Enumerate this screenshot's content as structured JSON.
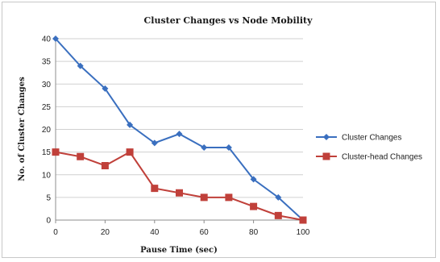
{
  "chart_data": {
    "type": "line",
    "title": "Cluster Changes vs Node Mobility",
    "xlabel": "Pause Time (sec)",
    "ylabel": "No. of Cluster Changes",
    "x": [
      0,
      10,
      20,
      30,
      40,
      50,
      60,
      70,
      80,
      90,
      100
    ],
    "xticks": [
      "0",
      "20",
      "40",
      "60",
      "80",
      "100"
    ],
    "yticks": [
      "0",
      "5",
      "10",
      "15",
      "20",
      "25",
      "30",
      "35",
      "40"
    ],
    "xlim": [
      0,
      100
    ],
    "ylim": [
      0,
      40
    ],
    "grid": "horizontal",
    "legend_position": "right",
    "series": [
      {
        "name": "Cluster Changes",
        "color": "#3a6fbf",
        "marker": "diamond",
        "values": [
          40,
          34,
          29,
          21,
          17,
          19,
          16,
          16,
          9,
          5,
          0
        ]
      },
      {
        "name": "Cluster-head Changes",
        "color": "#c0403a",
        "marker": "square",
        "values": [
          15,
          14,
          12,
          15,
          7,
          6,
          5,
          5,
          3,
          1,
          0
        ]
      }
    ]
  }
}
